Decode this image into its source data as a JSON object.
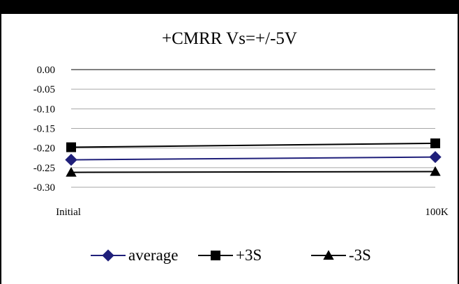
{
  "chart_data": {
    "type": "line",
    "title": "+CMRR Vs=+/-5V",
    "xlabel": "",
    "ylabel": "",
    "categories": [
      "Initial",
      "100K"
    ],
    "ylim": [
      -0.3,
      0.0
    ],
    "yticks": [
      "0.00",
      "-0.05",
      "-0.10",
      "-0.15",
      "-0.20",
      "-0.25",
      "-0.30"
    ],
    "ytick_values": [
      0.0,
      -0.05,
      -0.1,
      -0.15,
      -0.2,
      -0.25,
      -0.3
    ],
    "grid": true,
    "legend_position": "bottom",
    "series": [
      {
        "name": "average",
        "values": [
          -0.23,
          -0.223
        ],
        "color": "#1f1f7a",
        "marker": "diamond"
      },
      {
        "name": "+3S",
        "values": [
          -0.198,
          -0.188
        ],
        "color": "#000000",
        "marker": "square"
      },
      {
        "name": "-3S",
        "values": [
          -0.262,
          -0.26
        ],
        "color": "#000000",
        "marker": "triangle"
      }
    ],
    "gridline_color": "#a6a6a6"
  }
}
